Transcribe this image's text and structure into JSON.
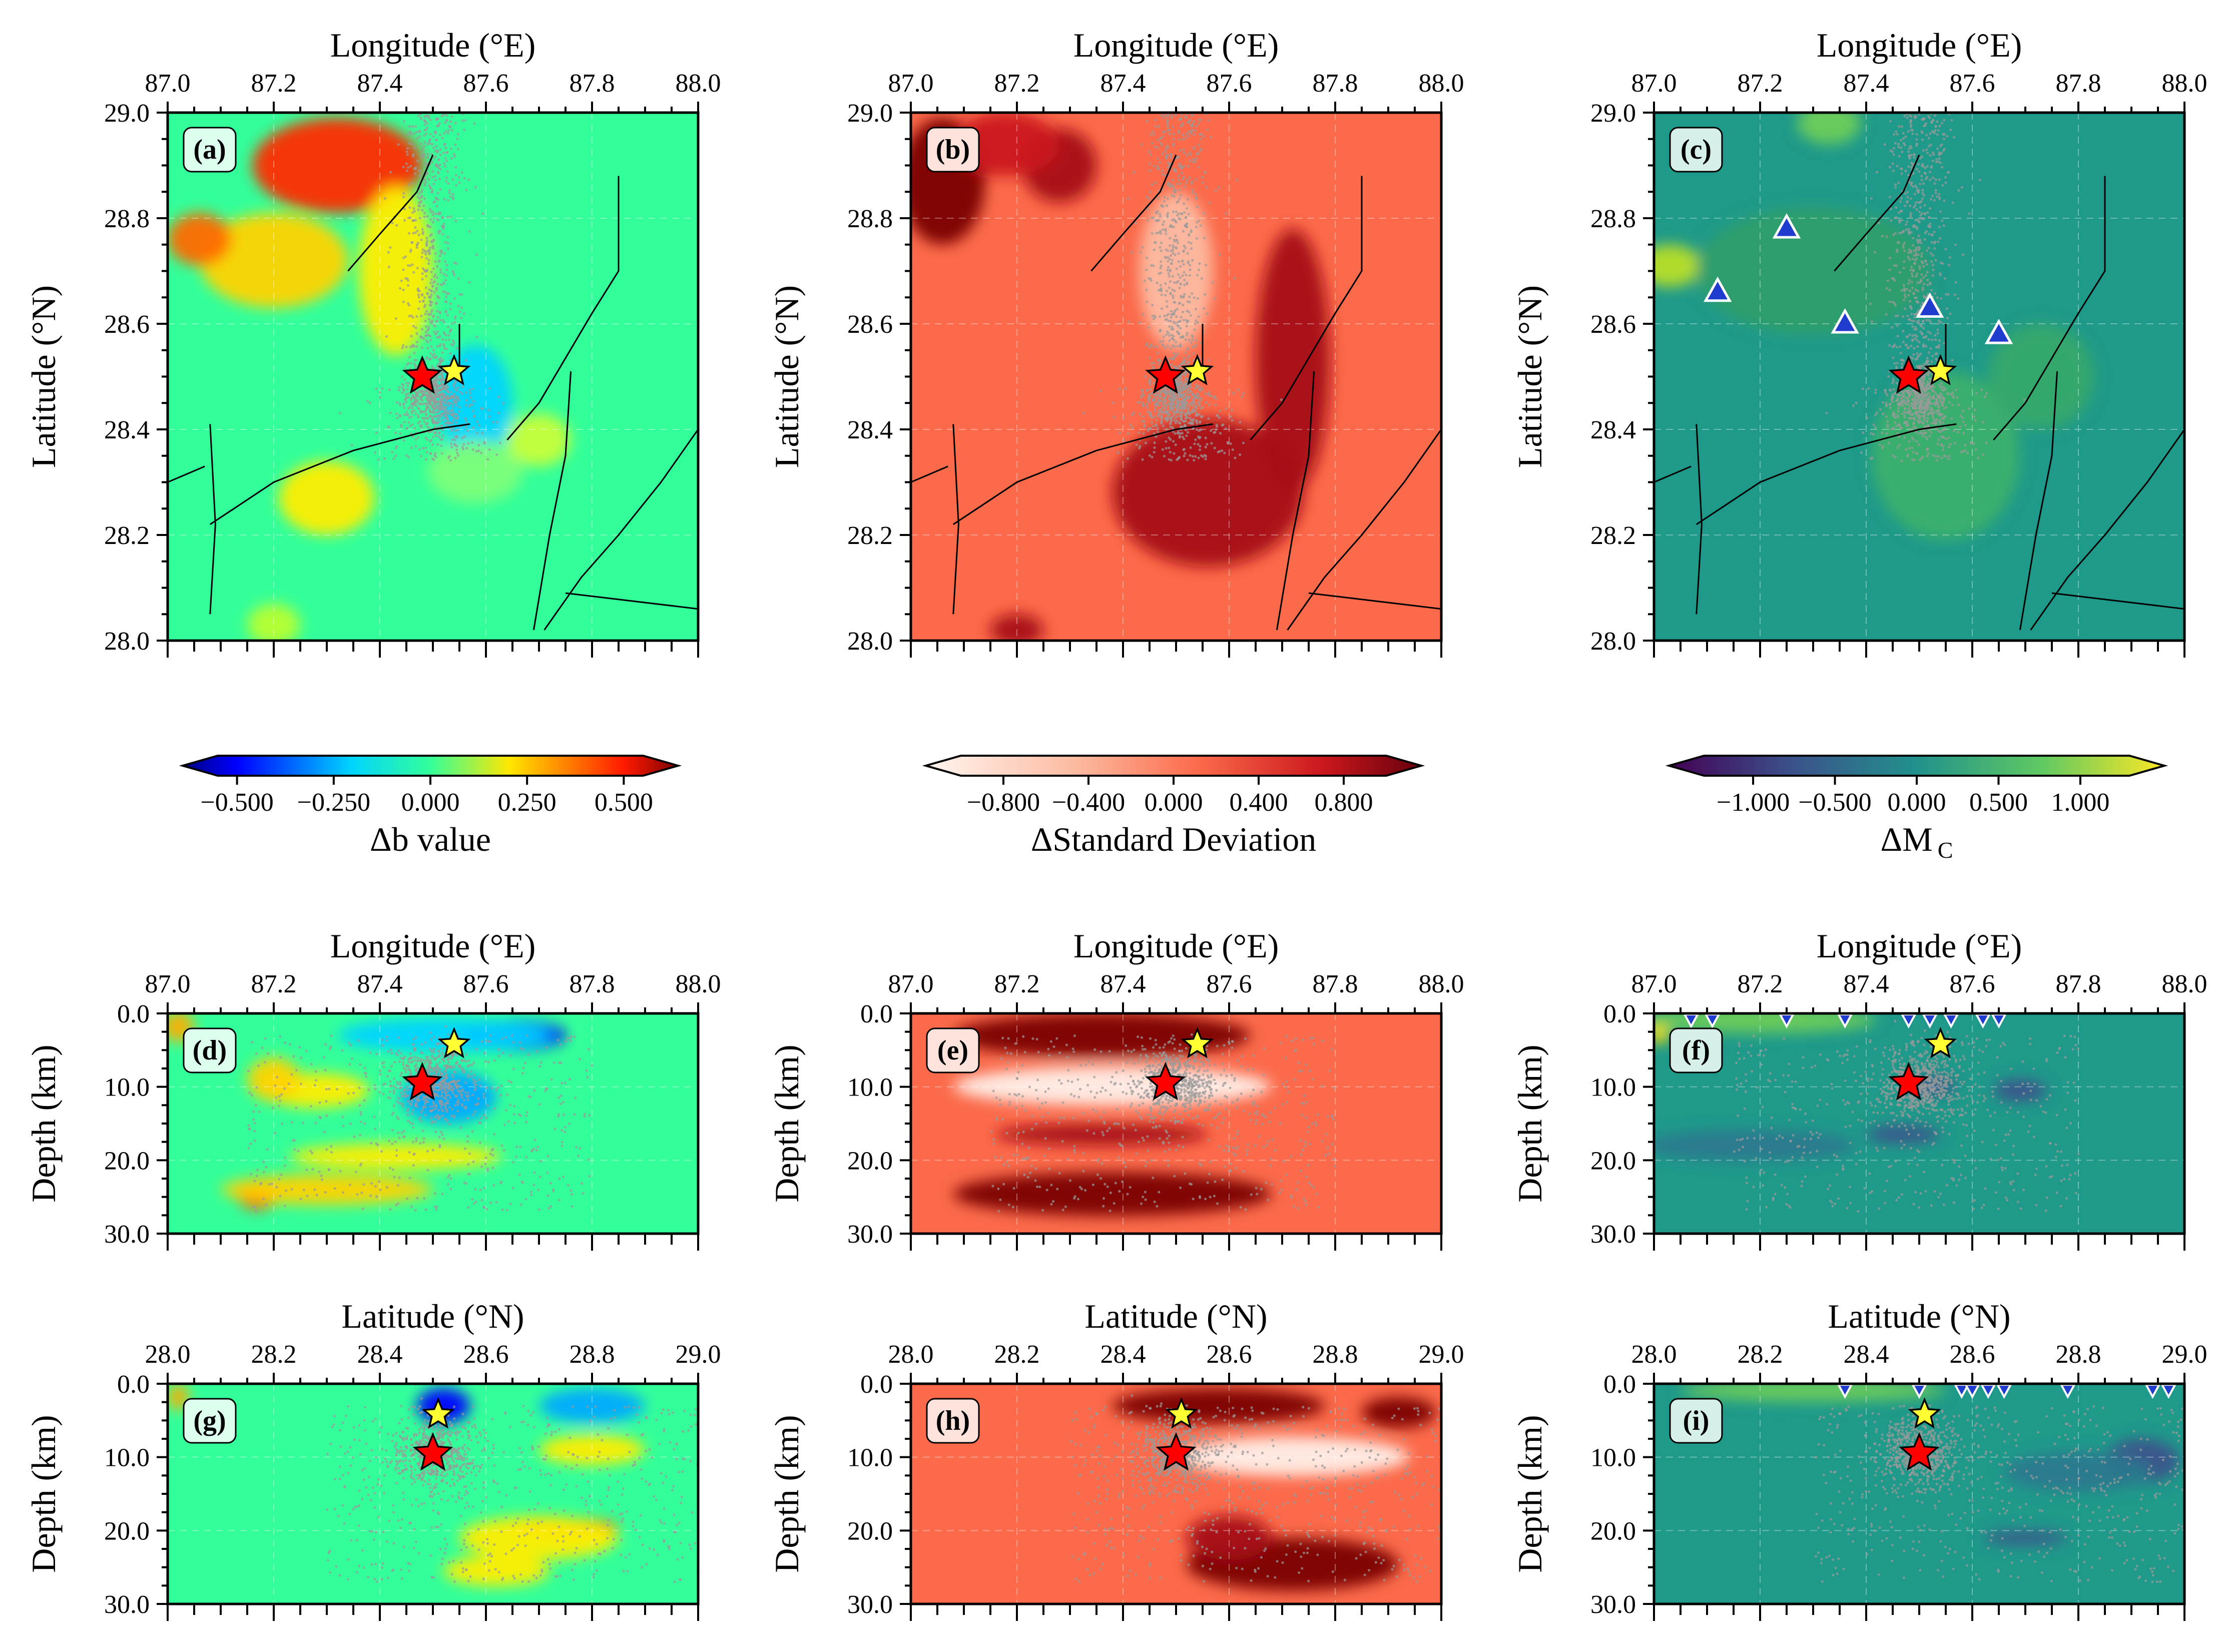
{
  "chart_data": [
    {
      "panel": "a",
      "type": "heatmap",
      "view": "map",
      "field": "b",
      "label": "(a)",
      "xlabel": "Longitude (°E)",
      "ylabel": "Latitude (°N)",
      "xlim": [
        87.0,
        88.0
      ],
      "ylim": [
        28.0,
        29.0
      ],
      "xticks": [
        "87.0",
        "87.2",
        "87.4",
        "87.6",
        "87.8",
        "88.0"
      ],
      "yticks": [
        "28.0",
        "28.2",
        "28.4",
        "28.6",
        "28.8",
        "29.0"
      ],
      "stars": [
        {
          "x": 87.48,
          "y": 28.5,
          "color": "red"
        },
        {
          "x": 87.54,
          "y": 28.51,
          "color": "yellow"
        }
      ]
    },
    {
      "panel": "b",
      "type": "heatmap",
      "view": "map",
      "field": "sd",
      "label": "(b)",
      "xlabel": "Longitude (°E)",
      "ylabel": "Latitude (°N)",
      "xlim": [
        87.0,
        88.0
      ],
      "ylim": [
        28.0,
        29.0
      ],
      "xticks": [
        "87.0",
        "87.2",
        "87.4",
        "87.6",
        "87.8",
        "88.0"
      ],
      "yticks": [
        "28.0",
        "28.2",
        "28.4",
        "28.6",
        "28.8",
        "29.0"
      ],
      "stars": [
        {
          "x": 87.48,
          "y": 28.5,
          "color": "red"
        },
        {
          "x": 87.54,
          "y": 28.51,
          "color": "yellow"
        }
      ]
    },
    {
      "panel": "c",
      "type": "heatmap",
      "view": "map",
      "field": "mc",
      "label": "(c)",
      "xlabel": "Longitude (°E)",
      "ylabel": "Latitude (°N)",
      "xlim": [
        87.0,
        88.0
      ],
      "ylim": [
        28.0,
        29.0
      ],
      "xticks": [
        "87.0",
        "87.2",
        "87.4",
        "87.6",
        "87.8",
        "88.0"
      ],
      "yticks": [
        "28.0",
        "28.2",
        "28.4",
        "28.6",
        "28.8",
        "29.0"
      ],
      "stars": [
        {
          "x": 87.48,
          "y": 28.5,
          "color": "red"
        },
        {
          "x": 87.54,
          "y": 28.51,
          "color": "yellow"
        }
      ],
      "stations": [
        {
          "x": 87.25,
          "y": 28.78
        },
        {
          "x": 87.12,
          "y": 28.66
        },
        {
          "x": 87.36,
          "y": 28.6
        },
        {
          "x": 87.52,
          "y": 28.63
        },
        {
          "x": 87.65,
          "y": 28.58
        }
      ]
    },
    {
      "panel": "d",
      "type": "heatmap",
      "view": "lon-depth",
      "field": "b",
      "label": "(d)",
      "xlabel": "Longitude (°E)",
      "ylabel": "Depth (km)",
      "xlim": [
        87.0,
        88.0
      ],
      "ylim": [
        0.0,
        30.0
      ],
      "xticks": [
        "87.0",
        "87.2",
        "87.4",
        "87.6",
        "87.8",
        "88.0"
      ],
      "yticks": [
        "0.0",
        "10.0",
        "20.0",
        "30.0"
      ],
      "stars": [
        {
          "x": 87.48,
          "y": 9.5,
          "color": "red"
        },
        {
          "x": 87.54,
          "y": 4.2,
          "color": "yellow"
        }
      ]
    },
    {
      "panel": "e",
      "type": "heatmap",
      "view": "lon-depth",
      "field": "sd",
      "label": "(e)",
      "xlabel": "Longitude (°E)",
      "ylabel": "Depth (km)",
      "xlim": [
        87.0,
        88.0
      ],
      "ylim": [
        0.0,
        30.0
      ],
      "xticks": [
        "87.0",
        "87.2",
        "87.4",
        "87.6",
        "87.8",
        "88.0"
      ],
      "yticks": [
        "0.0",
        "10.0",
        "20.0",
        "30.0"
      ],
      "stars": [
        {
          "x": 87.48,
          "y": 9.5,
          "color": "red"
        },
        {
          "x": 87.54,
          "y": 4.2,
          "color": "yellow"
        }
      ]
    },
    {
      "panel": "f",
      "type": "heatmap",
      "view": "lon-depth",
      "field": "mc",
      "label": "(f)",
      "xlabel": "Longitude (°E)",
      "ylabel": "Depth (km)",
      "xlim": [
        87.0,
        88.0
      ],
      "ylim": [
        0.0,
        30.0
      ],
      "xticks": [
        "87.0",
        "87.2",
        "87.4",
        "87.6",
        "87.8",
        "88.0"
      ],
      "yticks": [
        "0.0",
        "10.0",
        "20.0",
        "30.0"
      ],
      "stars": [
        {
          "x": 87.48,
          "y": 9.5,
          "color": "red"
        },
        {
          "x": 87.54,
          "y": 4.2,
          "color": "yellow"
        }
      ],
      "stations": [
        {
          "x": 87.07,
          "y": 0
        },
        {
          "x": 87.11,
          "y": 0
        },
        {
          "x": 87.25,
          "y": 0
        },
        {
          "x": 87.36,
          "y": 0
        },
        {
          "x": 87.48,
          "y": 0
        },
        {
          "x": 87.52,
          "y": 0
        },
        {
          "x": 87.56,
          "y": 0
        },
        {
          "x": 87.62,
          "y": 0
        },
        {
          "x": 87.65,
          "y": 0
        }
      ]
    },
    {
      "panel": "g",
      "type": "heatmap",
      "view": "lat-depth",
      "field": "b",
      "label": "(g)",
      "xlabel": "Latitude (°N)",
      "ylabel": "Depth (km)",
      "xlim": [
        28.0,
        29.0
      ],
      "ylim": [
        0.0,
        30.0
      ],
      "xticks": [
        "28.0",
        "28.2",
        "28.4",
        "28.6",
        "28.8",
        "29.0"
      ],
      "yticks": [
        "0.0",
        "10.0",
        "20.0",
        "30.0"
      ],
      "stars": [
        {
          "x": 28.5,
          "y": 9.5,
          "color": "red"
        },
        {
          "x": 28.51,
          "y": 4.2,
          "color": "yellow"
        }
      ]
    },
    {
      "panel": "h",
      "type": "heatmap",
      "view": "lat-depth",
      "field": "sd",
      "label": "(h)",
      "xlabel": "Latitude (°N)",
      "ylabel": "Depth (km)",
      "xlim": [
        28.0,
        29.0
      ],
      "ylim": [
        0.0,
        30.0
      ],
      "xticks": [
        "28.0",
        "28.2",
        "28.4",
        "28.6",
        "28.8",
        "29.0"
      ],
      "yticks": [
        "0.0",
        "10.0",
        "20.0",
        "30.0"
      ],
      "stars": [
        {
          "x": 28.5,
          "y": 9.5,
          "color": "red"
        },
        {
          "x": 28.51,
          "y": 4.2,
          "color": "yellow"
        }
      ]
    },
    {
      "panel": "i",
      "type": "heatmap",
      "view": "lat-depth",
      "field": "mc",
      "label": "(i)",
      "xlabel": "Latitude (°N)",
      "ylabel": "Depth (km)",
      "xlim": [
        28.0,
        29.0
      ],
      "ylim": [
        0.0,
        30.0
      ],
      "xticks": [
        "28.0",
        "28.2",
        "28.4",
        "28.6",
        "28.8",
        "29.0"
      ],
      "yticks": [
        "0.0",
        "10.0",
        "20.0",
        "30.0"
      ],
      "stars": [
        {
          "x": 28.5,
          "y": 9.5,
          "color": "red"
        },
        {
          "x": 28.51,
          "y": 4.2,
          "color": "yellow"
        }
      ],
      "stations": [
        {
          "x": 28.36,
          "y": 0
        },
        {
          "x": 28.5,
          "y": 0
        },
        {
          "x": 28.58,
          "y": 0
        },
        {
          "x": 28.6,
          "y": 0
        },
        {
          "x": 28.63,
          "y": 0
        },
        {
          "x": 28.66,
          "y": 0
        },
        {
          "x": 28.78,
          "y": 0
        },
        {
          "x": 28.94,
          "y": 0
        },
        {
          "x": 28.97,
          "y": 0
        }
      ]
    }
  ],
  "colorbars": [
    {
      "id": "b",
      "label": "Δb value",
      "range": [
        -0.55,
        0.55
      ],
      "ticks": [
        -0.5,
        -0.25,
        0.0,
        0.25,
        0.5
      ],
      "tick_labels": [
        "−0.500",
        "−0.250",
        "0.000",
        "0.250",
        "0.500"
      ],
      "colormap": "jet"
    },
    {
      "id": "sd",
      "label": "ΔStandard Deviation",
      "range": [
        -1.0,
        1.0
      ],
      "ticks": [
        -0.8,
        -0.4,
        0.0,
        0.4,
        0.8
      ],
      "tick_labels": [
        "−0.800",
        "−0.400",
        "0.000",
        "0.400",
        "0.800"
      ],
      "colormap": "reds"
    },
    {
      "id": "mc",
      "label": "ΔM",
      "label_sub": "C",
      "range": [
        -1.3,
        1.3
      ],
      "ticks": [
        -1.0,
        -0.5,
        0.0,
        0.5,
        1.0
      ],
      "tick_labels": [
        "−1.000",
        "−0.500",
        "0.000",
        "0.500",
        "1.000"
      ],
      "colormap": "viridis"
    }
  ],
  "colors": {
    "star_main": "#ff0000",
    "star_after": "#ffff33",
    "station": "#1f3ccf",
    "seis": "#9a9a9a"
  }
}
